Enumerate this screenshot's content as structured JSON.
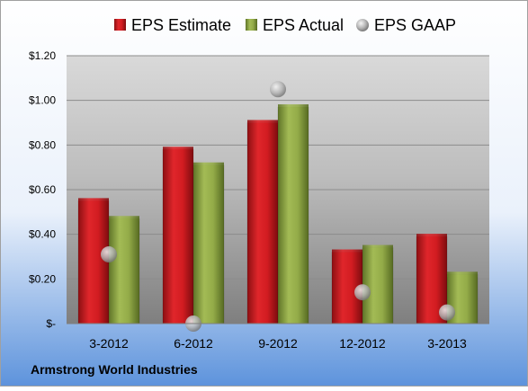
{
  "chart_data": {
    "type": "bar",
    "categories": [
      "3-2012",
      "6-2012",
      "9-2012",
      "12-2012",
      "3-2013"
    ],
    "series": [
      {
        "name": "EPS Estimate",
        "kind": "bar",
        "color": "#c0171c",
        "values": [
          0.55,
          0.78,
          0.9,
          0.32,
          0.39
        ]
      },
      {
        "name": "EPS Actual",
        "kind": "bar",
        "color": "#8aa040",
        "values": [
          0.47,
          0.71,
          0.97,
          0.34,
          0.22
        ]
      },
      {
        "name": "EPS GAAP",
        "kind": "point",
        "color": "#a9a9a9",
        "values": [
          0.31,
          0.0,
          1.05,
          0.14,
          0.05
        ]
      }
    ],
    "yticks": [
      "$-",
      "$0.20",
      "$0.40",
      "$0.60",
      "$0.80",
      "$1.00",
      "$1.20"
    ],
    "ylim": [
      0,
      1.2
    ],
    "grid": true,
    "legend_position": "top",
    "footer": "Armstrong World Industries"
  }
}
